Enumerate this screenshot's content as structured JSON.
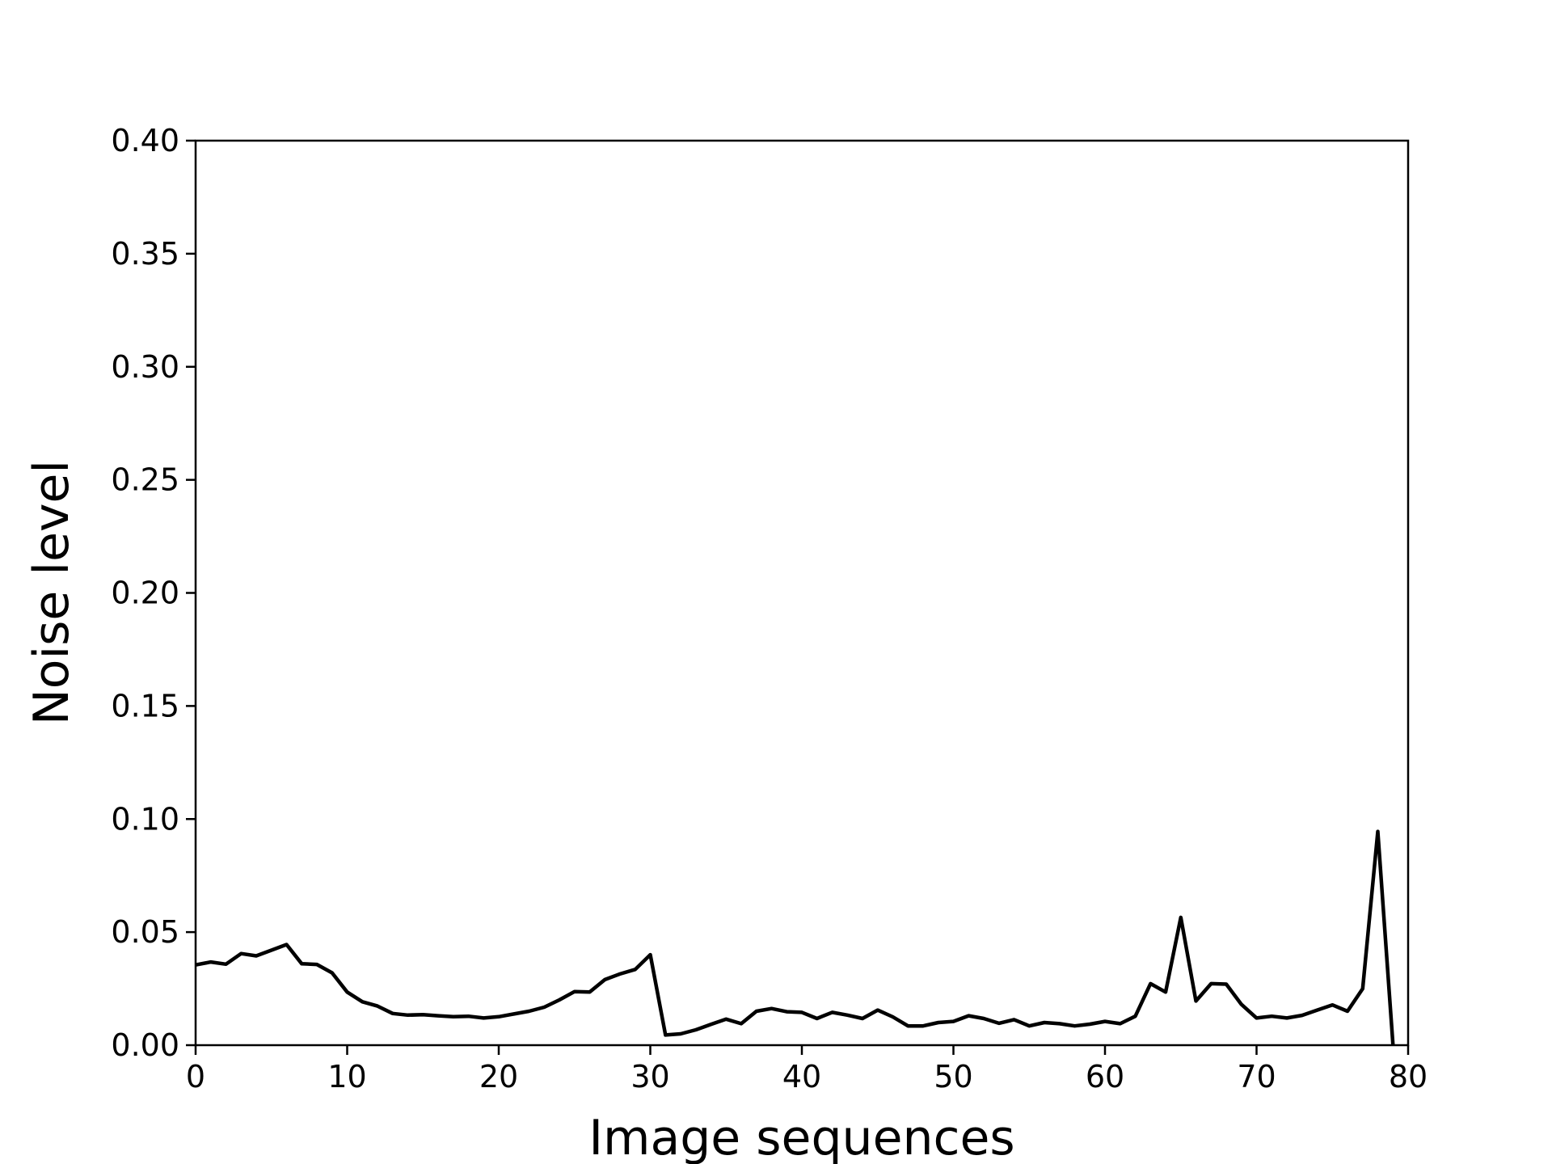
{
  "chart_data": {
    "type": "line",
    "xlabel": "Image sequences",
    "ylabel": "Noise level",
    "xlim": [
      0,
      80
    ],
    "ylim": [
      0,
      0.4
    ],
    "xticks": [
      "0",
      "10",
      "20",
      "30",
      "40",
      "50",
      "60",
      "70",
      "80"
    ],
    "yticks": [
      "0.00",
      "0.05",
      "0.10",
      "0.15",
      "0.20",
      "0.25",
      "0.30",
      "0.35",
      "0.40"
    ],
    "grid": false,
    "legend": "none",
    "series": [
      {
        "color": "#000000",
        "x": [
          0,
          1,
          2,
          3,
          4,
          5,
          6,
          7,
          8,
          9,
          10,
          11,
          12,
          13,
          14,
          15,
          16,
          17,
          18,
          19,
          20,
          21,
          22,
          23,
          24,
          25,
          26,
          27,
          28,
          29,
          30,
          31,
          32,
          33,
          34,
          35,
          36,
          37,
          38,
          39,
          40,
          41,
          42,
          43,
          44,
          45,
          46,
          47,
          48,
          49,
          50,
          51,
          52,
          53,
          54,
          55,
          56,
          57,
          58,
          59,
          60,
          61,
          62,
          63,
          64,
          65,
          66,
          67,
          68,
          69,
          70,
          71,
          72,
          73,
          74,
          75,
          76,
          77,
          78,
          79
        ],
        "y": [
          0.0355,
          0.0368,
          0.0358,
          0.0405,
          0.0395,
          0.042,
          0.0445,
          0.036,
          0.0357,
          0.032,
          0.0235,
          0.0192,
          0.0173,
          0.014,
          0.0133,
          0.0135,
          0.013,
          0.0126,
          0.0128,
          0.012,
          0.0126,
          0.0138,
          0.015,
          0.0168,
          0.02,
          0.0237,
          0.0235,
          0.029,
          0.0315,
          0.0335,
          0.04,
          0.0045,
          0.005,
          0.0068,
          0.0092,
          0.0115,
          0.0095,
          0.015,
          0.0162,
          0.0148,
          0.0145,
          0.0118,
          0.0145,
          0.0133,
          0.0118,
          0.0155,
          0.0125,
          0.0085,
          0.0085,
          0.01,
          0.0105,
          0.013,
          0.0118,
          0.0097,
          0.0113,
          0.0085,
          0.01,
          0.0095,
          0.0085,
          0.0093,
          0.0105,
          0.0095,
          0.0128,
          0.0272,
          0.0235,
          0.0565,
          0.0195,
          0.0272,
          0.027,
          0.018,
          0.012,
          0.0128,
          0.012,
          0.0132,
          0.0155,
          0.0178,
          0.015,
          0.025,
          0.0945,
          0.0
        ]
      }
    ]
  }
}
